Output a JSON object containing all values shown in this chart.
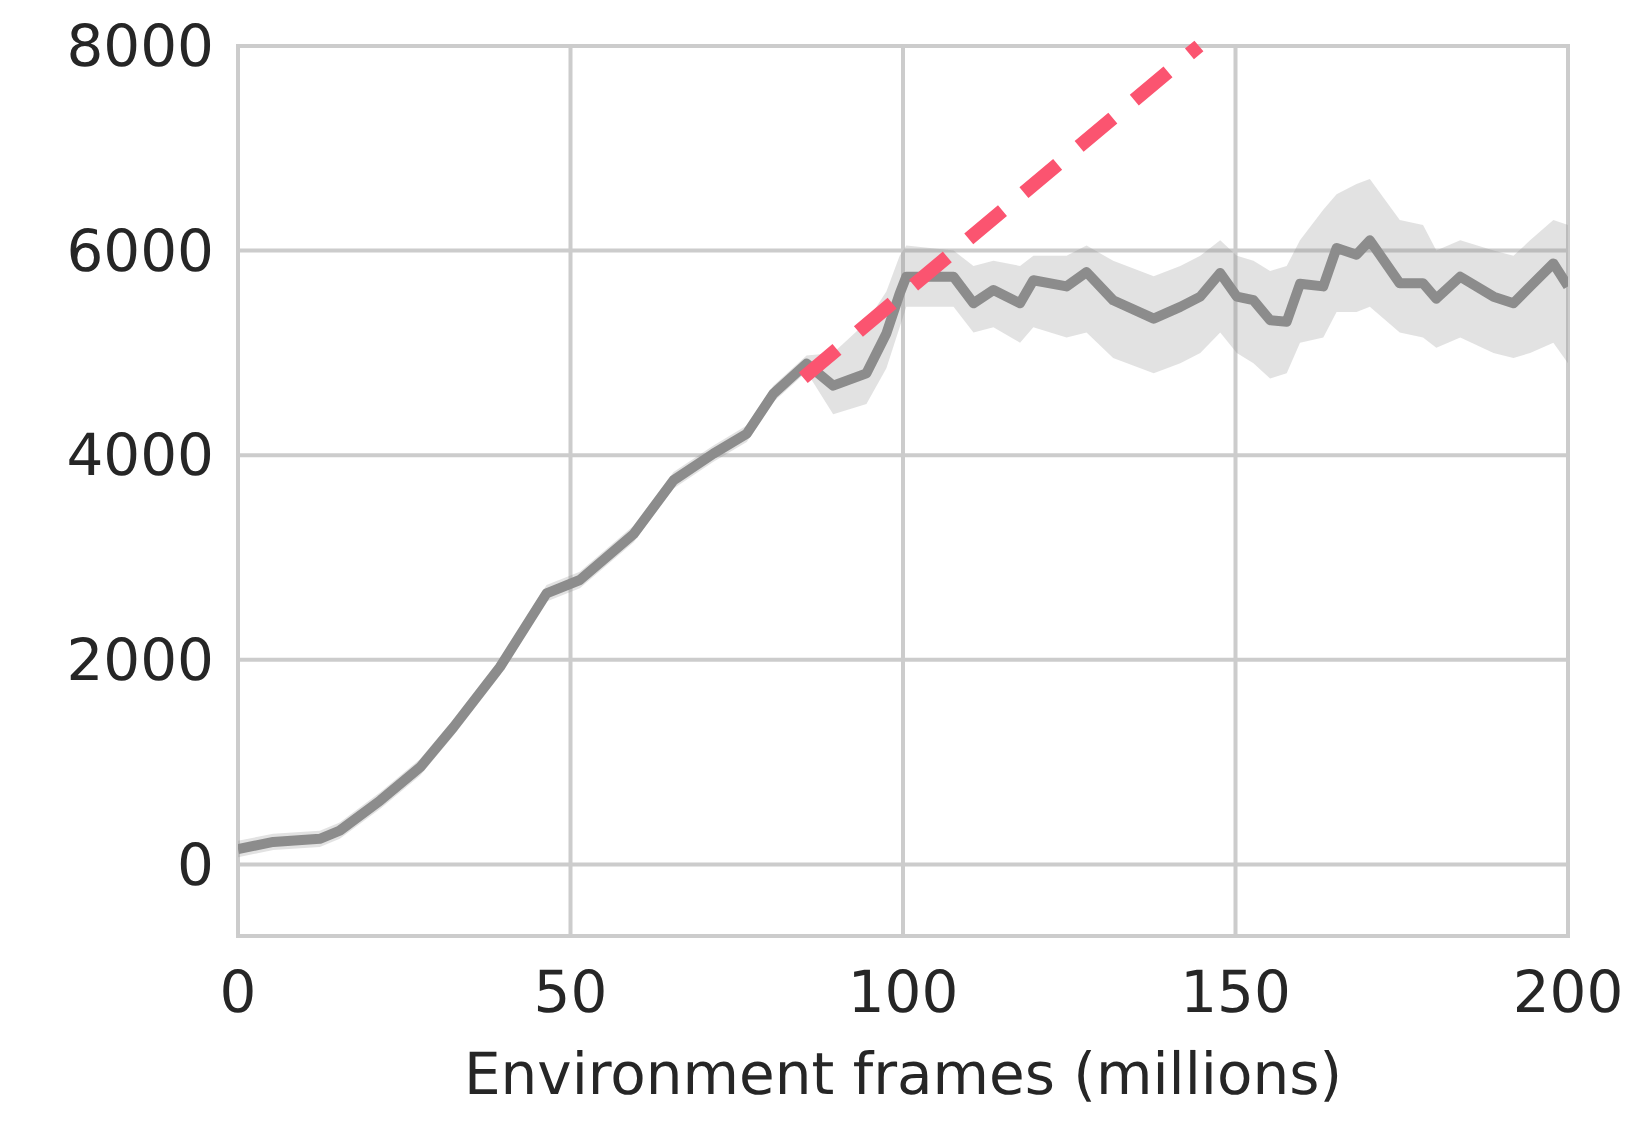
{
  "chart_data": {
    "type": "line",
    "xlabel": "Environment frames (millions)",
    "xlim": [
      0,
      200
    ],
    "ylim": [
      -700,
      8000
    ],
    "xticks": [
      0,
      50,
      100,
      150,
      200
    ],
    "yticks": [
      0,
      2000,
      4000,
      6000,
      8000
    ],
    "grid": true,
    "series": [
      {
        "color": "#8c8c8c",
        "line_style": "solid",
        "x": [
          0,
          5.3,
          12.3,
          15.3,
          21.4,
          27.4,
          32.4,
          39.4,
          46.4,
          51.4,
          59.5,
          65.5,
          71.5,
          76.5,
          80.5,
          85.5,
          89.5,
          94.5,
          97.5,
          99.5,
          100.5,
          107.6,
          110.6,
          113.6,
          117.6,
          119.6,
          124.6,
          127.6,
          131.6,
          137.7,
          141.7,
          144.7,
          147.7,
          150.2,
          152.7,
          155.2,
          157.7,
          159.7,
          163.2,
          165.2,
          168.2,
          170.2,
          174.7,
          178.2,
          180.2,
          183.8,
          188.8,
          191.8,
          194.3,
          197.8,
          200
        ],
        "values": [
          150,
          220,
          250,
          330,
          625,
          950,
          1340,
          1930,
          2650,
          2780,
          3230,
          3755,
          4015,
          4210,
          4600,
          4895,
          4680,
          4800,
          5190,
          5580,
          5745,
          5745,
          5485,
          5615,
          5485,
          5710,
          5650,
          5790,
          5515,
          5335,
          5450,
          5550,
          5780,
          5550,
          5515,
          5320,
          5305,
          5675,
          5650,
          6025,
          5960,
          6100,
          5680,
          5680,
          5530,
          5745,
          5550,
          5485,
          5650,
          5875,
          5650
        ],
        "lower": [
          70,
          140,
          170,
          250,
          545,
          870,
          1260,
          1850,
          2570,
          2700,
          3150,
          3675,
          3935,
          4130,
          4520,
          4815,
          4400,
          4500,
          4850,
          5250,
          5450,
          5450,
          5200,
          5250,
          5100,
          5250,
          5150,
          5200,
          4950,
          4800,
          4900,
          5000,
          5200,
          5000,
          4900,
          4750,
          4800,
          5100,
          5150,
          5400,
          5400,
          5450,
          5200,
          5150,
          5050,
          5150,
          5000,
          4950,
          5000,
          5100,
          4900
        ],
        "upper": [
          230,
          300,
          330,
          410,
          705,
          1030,
          1420,
          2010,
          2730,
          2860,
          3310,
          3835,
          4095,
          4290,
          4680,
          4975,
          5000,
          5300,
          5600,
          5950,
          6050,
          6000,
          5850,
          5900,
          5850,
          5950,
          5950,
          6050,
          5900,
          5750,
          5850,
          5950,
          6100,
          5950,
          5900,
          5800,
          5850,
          6100,
          6400,
          6550,
          6650,
          6700,
          6300,
          6250,
          6000,
          6100,
          6000,
          5950,
          6100,
          6300,
          6250
        ]
      },
      {
        "color": "#fb5470",
        "line_style": "dashed",
        "x": [
          85,
          144.5
        ],
        "values": [
          4757,
          8000
        ]
      }
    ]
  }
}
